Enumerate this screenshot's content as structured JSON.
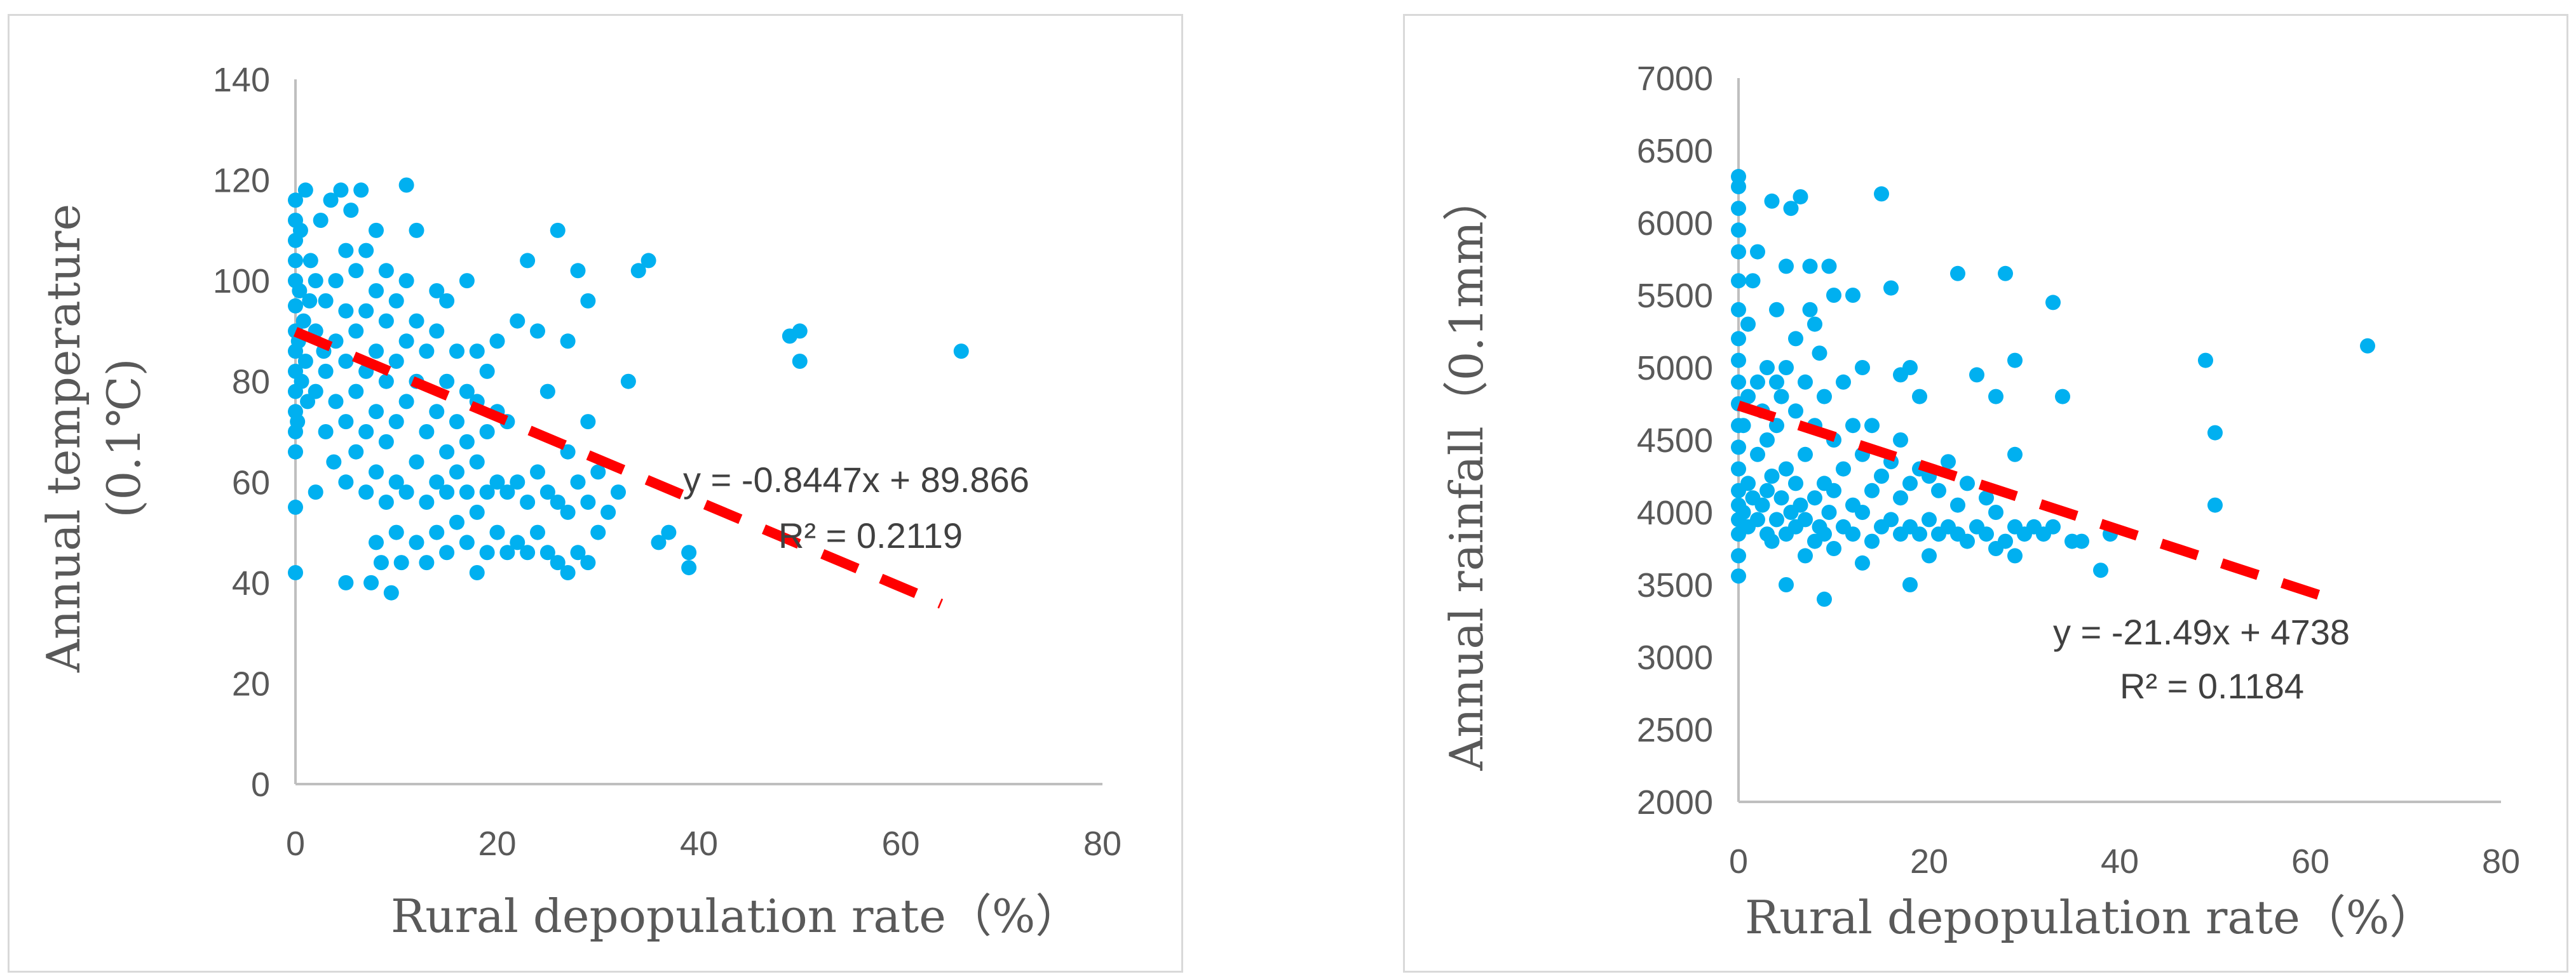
{
  "chart_data": [
    {
      "type": "scatter",
      "title": "",
      "xlabel": "Rural depopulation rate（%）",
      "ylabel": "Annual temperature",
      "ylabel_unit": "(0.1℃)",
      "xlim": [
        0,
        80
      ],
      "ylim": [
        0,
        140
      ],
      "x_ticks": [
        "0",
        "20",
        "40",
        "60",
        "80"
      ],
      "y_ticks": [
        "0",
        "20",
        "40",
        "60",
        "80",
        "100",
        "120",
        "140"
      ],
      "trendline": {
        "slope": -0.8447,
        "intercept": 89.866,
        "x_range": [
          0,
          64
        ],
        "equation": "y = -0.8447x + 89.866",
        "r2": "R² = 0.2119"
      },
      "colors": {
        "points": "#00b0f0",
        "trend": "#ff0000"
      },
      "points": [
        [
          0,
          42
        ],
        [
          0,
          55
        ],
        [
          0,
          66
        ],
        [
          0,
          70
        ],
        [
          0,
          74
        ],
        [
          0,
          78
        ],
        [
          0,
          82
        ],
        [
          0,
          86
        ],
        [
          0,
          90
        ],
        [
          0,
          95
        ],
        [
          0,
          100
        ],
        [
          0,
          104
        ],
        [
          0,
          108
        ],
        [
          0,
          112
        ],
        [
          0,
          116
        ],
        [
          0.2,
          72
        ],
        [
          0.3,
          88
        ],
        [
          0.4,
          98
        ],
        [
          0.5,
          110
        ],
        [
          0.6,
          80
        ],
        [
          0.8,
          92
        ],
        [
          1,
          84
        ],
        [
          1,
          118
        ],
        [
          1.2,
          76
        ],
        [
          1.4,
          96
        ],
        [
          1.5,
          104
        ],
        [
          2,
          58
        ],
        [
          2,
          78
        ],
        [
          2,
          90
        ],
        [
          2,
          100
        ],
        [
          2.5,
          112
        ],
        [
          2.8,
          86
        ],
        [
          3,
          70
        ],
        [
          3,
          82
        ],
        [
          3,
          96
        ],
        [
          3.5,
          116
        ],
        [
          3.8,
          64
        ],
        [
          4,
          76
        ],
        [
          4,
          88
        ],
        [
          4,
          100
        ],
        [
          4.5,
          118
        ],
        [
          5,
          40
        ],
        [
          5,
          60
        ],
        [
          5,
          72
        ],
        [
          5,
          84
        ],
        [
          5,
          94
        ],
        [
          5,
          106
        ],
        [
          5.5,
          114
        ],
        [
          6,
          66
        ],
        [
          6,
          78
        ],
        [
          6,
          90
        ],
        [
          6,
          102
        ],
        [
          6.5,
          118
        ],
        [
          7,
          58
        ],
        [
          7,
          70
        ],
        [
          7,
          82
        ],
        [
          7,
          94
        ],
        [
          7,
          106
        ],
        [
          7.5,
          40
        ],
        [
          8,
          48
        ],
        [
          8,
          62
        ],
        [
          8,
          74
        ],
        [
          8,
          86
        ],
        [
          8,
          98
        ],
        [
          8,
          110
        ],
        [
          8.5,
          44
        ],
        [
          9,
          56
        ],
        [
          9,
          68
        ],
        [
          9,
          80
        ],
        [
          9,
          92
        ],
        [
          9,
          102
        ],
        [
          9.5,
          38
        ],
        [
          10,
          50
        ],
        [
          10,
          60
        ],
        [
          10,
          72
        ],
        [
          10,
          84
        ],
        [
          10,
          96
        ],
        [
          10.5,
          44
        ],
        [
          11,
          58
        ],
        [
          11,
          76
        ],
        [
          11,
          88
        ],
        [
          11,
          100
        ],
        [
          11,
          119
        ],
        [
          12,
          48
        ],
        [
          12,
          64
        ],
        [
          12,
          80
        ],
        [
          12,
          92
        ],
        [
          12,
          110
        ],
        [
          13,
          44
        ],
        [
          13,
          56
        ],
        [
          13,
          70
        ],
        [
          13,
          86
        ],
        [
          14,
          50
        ],
        [
          14,
          60
        ],
        [
          14,
          74
        ],
        [
          14,
          90
        ],
        [
          14,
          98
        ],
        [
          15,
          46
        ],
        [
          15,
          58
        ],
        [
          15,
          66
        ],
        [
          15,
          80
        ],
        [
          15,
          96
        ],
        [
          16,
          52
        ],
        [
          16,
          62
        ],
        [
          16,
          72
        ],
        [
          16,
          86
        ],
        [
          17,
          48
        ],
        [
          17,
          58
        ],
        [
          17,
          68
        ],
        [
          17,
          78
        ],
        [
          17,
          100
        ],
        [
          18,
          42
        ],
        [
          18,
          54
        ],
        [
          18,
          64
        ],
        [
          18,
          76
        ],
        [
          18,
          86
        ],
        [
          19,
          46
        ],
        [
          19,
          58
        ],
        [
          19,
          70
        ],
        [
          19,
          82
        ],
        [
          20,
          50
        ],
        [
          20,
          60
        ],
        [
          20,
          74
        ],
        [
          20,
          88
        ],
        [
          21,
          46
        ],
        [
          21,
          58
        ],
        [
          21,
          72
        ],
        [
          22,
          48
        ],
        [
          22,
          60
        ],
        [
          22,
          92
        ],
        [
          23,
          46
        ],
        [
          23,
          56
        ],
        [
          23,
          104
        ],
        [
          24,
          50
        ],
        [
          24,
          62
        ],
        [
          24,
          90
        ],
        [
          25,
          46
        ],
        [
          25,
          58
        ],
        [
          25,
          78
        ],
        [
          26,
          44
        ],
        [
          26,
          56
        ],
        [
          26,
          110
        ],
        [
          27,
          42
        ],
        [
          27,
          54
        ],
        [
          27,
          66
        ],
        [
          27,
          88
        ],
        [
          28,
          46
        ],
        [
          28,
          60
        ],
        [
          28,
          102
        ],
        [
          29,
          44
        ],
        [
          29,
          56
        ],
        [
          29,
          72
        ],
        [
          29,
          96
        ],
        [
          30,
          50
        ],
        [
          30,
          62
        ],
        [
          31,
          54
        ],
        [
          32,
          58
        ],
        [
          33,
          80
        ],
        [
          34,
          102
        ],
        [
          35,
          104
        ],
        [
          36,
          48
        ],
        [
          37,
          50
        ],
        [
          39,
          43
        ],
        [
          39,
          46
        ],
        [
          49,
          89
        ],
        [
          50,
          84
        ],
        [
          50,
          90
        ],
        [
          66,
          86
        ]
      ]
    },
    {
      "type": "scatter",
      "title": "",
      "xlabel": "Rural depopulation rate（%）",
      "ylabel": "Annual rainfall（0.1mm）",
      "xlim": [
        0,
        80
      ],
      "ylim": [
        2000,
        7000
      ],
      "x_ticks": [
        "0",
        "20",
        "40",
        "60",
        "80"
      ],
      "y_ticks": [
        "2000",
        "2500",
        "3000",
        "3500",
        "4000",
        "4500",
        "5000",
        "5500",
        "6000",
        "6500",
        "7000"
      ],
      "trendline": {
        "slope": -21.49,
        "intercept": 4738,
        "x_range": [
          0,
          62
        ],
        "equation": "y = -21.49x + 4738",
        "r2": "R² = 0.1184"
      },
      "colors": {
        "points": "#00b0f0",
        "trend": "#ff0000"
      },
      "points": [
        [
          0,
          3560
        ],
        [
          0,
          3700
        ],
        [
          0,
          3850
        ],
        [
          0,
          3950
        ],
        [
          0,
          4050
        ],
        [
          0,
          4150
        ],
        [
          0,
          4300
        ],
        [
          0,
          4450
        ],
        [
          0,
          4600
        ],
        [
          0,
          4750
        ],
        [
          0,
          4900
        ],
        [
          0,
          5050
        ],
        [
          0,
          5200
        ],
        [
          0,
          5400
        ],
        [
          0,
          5600
        ],
        [
          0,
          5800
        ],
        [
          0,
          5950
        ],
        [
          0,
          6100
        ],
        [
          0,
          6250
        ],
        [
          0,
          6320
        ],
        [
          0.5,
          4000
        ],
        [
          0.5,
          4600
        ],
        [
          1,
          3900
        ],
        [
          1,
          4200
        ],
        [
          1,
          4800
        ],
        [
          1,
          5300
        ],
        [
          1.5,
          4100
        ],
        [
          1.5,
          5600
        ],
        [
          2,
          3950
        ],
        [
          2,
          4400
        ],
        [
          2,
          4900
        ],
        [
          2,
          5800
        ],
        [
          2.5,
          4050
        ],
        [
          2.5,
          4700
        ],
        [
          3,
          3850
        ],
        [
          3,
          4150
        ],
        [
          3,
          4500
        ],
        [
          3,
          5000
        ],
        [
          3.5,
          3800
        ],
        [
          3.5,
          4250
        ],
        [
          3.5,
          6150
        ],
        [
          4,
          3950
        ],
        [
          4,
          4600
        ],
        [
          4,
          4900
        ],
        [
          4,
          5400
        ],
        [
          4.5,
          4100
        ],
        [
          4.5,
          4800
        ],
        [
          5,
          3500
        ],
        [
          5,
          3850
        ],
        [
          5,
          4300
        ],
        [
          5,
          5000
        ],
        [
          5,
          5700
        ],
        [
          5.5,
          4000
        ],
        [
          5.5,
          6100
        ],
        [
          6,
          3900
        ],
        [
          6,
          4200
        ],
        [
          6,
          4700
        ],
        [
          6,
          5200
        ],
        [
          6.5,
          4050
        ],
        [
          6.5,
          6180
        ],
        [
          7,
          3700
        ],
        [
          7,
          3950
        ],
        [
          7,
          4400
        ],
        [
          7,
          4900
        ],
        [
          7.5,
          5400
        ],
        [
          7.5,
          5700
        ],
        [
          8,
          3800
        ],
        [
          8,
          4100
        ],
        [
          8,
          4600
        ],
        [
          8,
          5300
        ],
        [
          8.5,
          3900
        ],
        [
          8.5,
          5100
        ],
        [
          9,
          3400
        ],
        [
          9,
          3850
        ],
        [
          9,
          4200
        ],
        [
          9,
          4800
        ],
        [
          9.5,
          4000
        ],
        [
          9.5,
          5700
        ],
        [
          10,
          3750
        ],
        [
          10,
          4150
        ],
        [
          10,
          4500
        ],
        [
          10,
          5500
        ],
        [
          11,
          3900
        ],
        [
          11,
          4300
        ],
        [
          11,
          4900
        ],
        [
          12,
          3850
        ],
        [
          12,
          4050
        ],
        [
          12,
          4600
        ],
        [
          12,
          5500
        ],
        [
          13,
          3650
        ],
        [
          13,
          4000
        ],
        [
          13,
          4400
        ],
        [
          13,
          5000
        ],
        [
          14,
          3800
        ],
        [
          14,
          4150
        ],
        [
          14,
          4600
        ],
        [
          15,
          3900
        ],
        [
          15,
          4250
        ],
        [
          15,
          6200
        ],
        [
          16,
          3950
        ],
        [
          16,
          4350
        ],
        [
          16,
          5550
        ],
        [
          17,
          3850
        ],
        [
          17,
          4100
        ],
        [
          17,
          4500
        ],
        [
          17,
          4950
        ],
        [
          18,
          3500
        ],
        [
          18,
          3900
        ],
        [
          18,
          4200
        ],
        [
          18,
          5000
        ],
        [
          19,
          3850
        ],
        [
          19,
          4300
        ],
        [
          19,
          4800
        ],
        [
          20,
          3700
        ],
        [
          20,
          3950
        ],
        [
          20,
          4250
        ],
        [
          21,
          3850
        ],
        [
          21,
          4150
        ],
        [
          22,
          3900
        ],
        [
          22,
          4350
        ],
        [
          23,
          3850
        ],
        [
          23,
          4050
        ],
        [
          23,
          5650
        ],
        [
          24,
          3800
        ],
        [
          24,
          4200
        ],
        [
          25,
          3900
        ],
        [
          25,
          4950
        ],
        [
          26,
          3850
        ],
        [
          26,
          4100
        ],
        [
          27,
          3750
        ],
        [
          27,
          4000
        ],
        [
          27,
          4800
        ],
        [
          28,
          3800
        ],
        [
          28,
          5650
        ],
        [
          29,
          3700
        ],
        [
          29,
          3900
        ],
        [
          29,
          4400
        ],
        [
          29,
          5050
        ],
        [
          30,
          3850
        ],
        [
          31,
          3900
        ],
        [
          32,
          3850
        ],
        [
          33,
          3900
        ],
        [
          33,
          5450
        ],
        [
          34,
          4800
        ],
        [
          35,
          3800
        ],
        [
          36,
          3800
        ],
        [
          38,
          3600
        ],
        [
          39,
          3850
        ],
        [
          49,
          5050
        ],
        [
          50,
          4550
        ],
        [
          50,
          4050
        ],
        [
          66,
          5150
        ]
      ]
    }
  ]
}
